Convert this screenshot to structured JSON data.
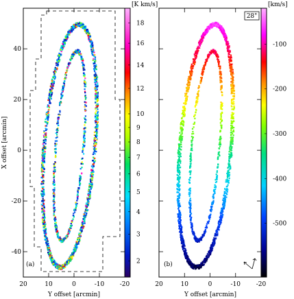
{
  "chart_data": [
    {
      "type": "heatmap",
      "panel_label": "(a)",
      "xlabel": "Y offset [arcmin]",
      "ylabel": "X offset [arcmin]",
      "xlim": [
        20,
        -20
      ],
      "ylim": [
        -50,
        56
      ],
      "xticks": [
        20,
        10,
        0,
        -10,
        -20
      ],
      "yticks": [
        40,
        20,
        0,
        -20,
        -40
      ],
      "colorbar": {
        "unit": "[K km/s]",
        "ticks": [
          2,
          3,
          4,
          5,
          6,
          7,
          8,
          9,
          10,
          12,
          14,
          16,
          18
        ],
        "range": [
          1.5,
          19.5
        ],
        "colormap": "spectral-rainbow (purple→blue→cyan→green→yellow→red→magenta→pink)"
      },
      "annotations": [
        "dashed survey boundary outline"
      ]
    },
    {
      "type": "heatmap",
      "panel_label": "(b)",
      "xlabel": "Y offset [arcmin]",
      "ylabel": "",
      "xlim": [
        20,
        -20
      ],
      "ylim": [
        -50,
        56
      ],
      "xticks": [
        20,
        10,
        0,
        -10,
        -20
      ],
      "yticks": [
        40,
        20,
        0,
        -20,
        -40
      ],
      "beam_label": "28\"",
      "colorbar": {
        "unit": "[km/s]",
        "ticks": [
          -500,
          -400,
          -300,
          -200,
          -100
        ],
        "range": [
          -620,
          -20
        ],
        "colormap": "black→blue→cyan→green→yellow→orange→red→magenta→pink"
      },
      "annotations": [
        "compass arrows (lower right)"
      ]
    }
  ]
}
